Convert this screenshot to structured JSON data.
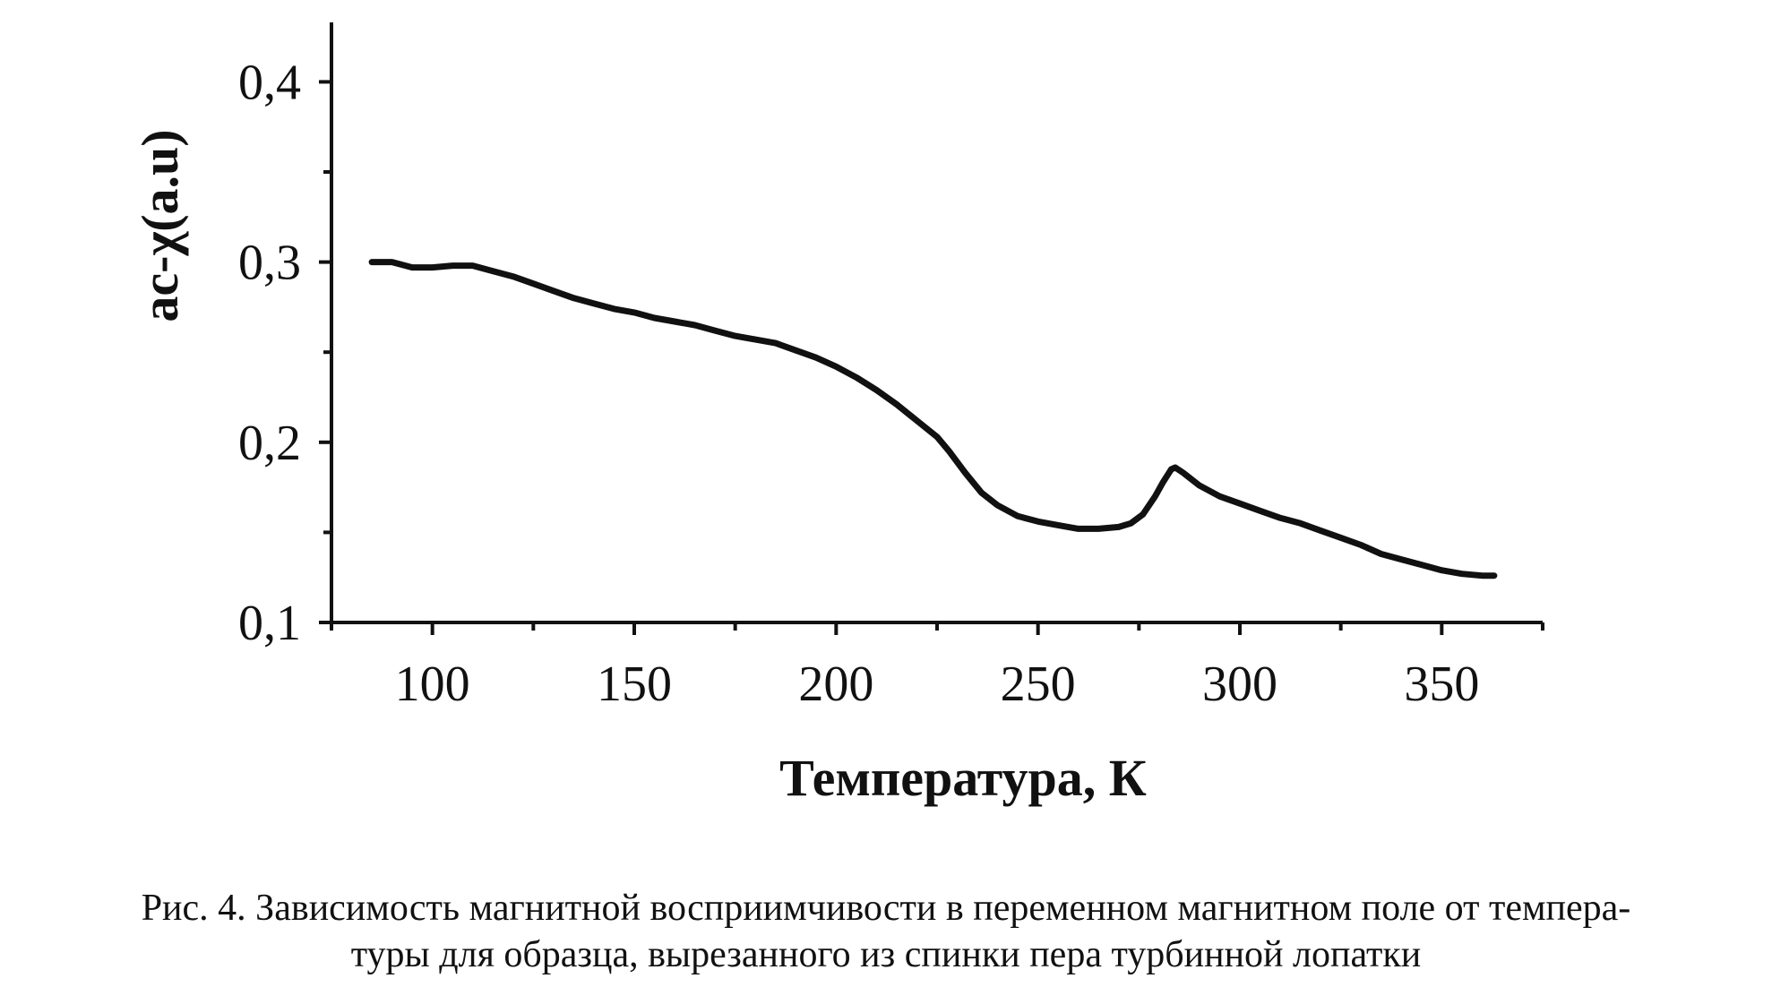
{
  "chart_data": {
    "type": "line",
    "title": "",
    "xlabel": "Температура, К",
    "ylabel": "ac-χ(a.u)",
    "xlim": [
      75,
      375
    ],
    "ylim": [
      0.1,
      0.433
    ],
    "x_ticks": [
      100,
      150,
      200,
      250,
      300,
      350
    ],
    "y_ticks": [
      0.1,
      0.2,
      0.3,
      0.4
    ],
    "x_tick_labels": [
      "100",
      "150",
      "200",
      "250",
      "300",
      "350"
    ],
    "y_tick_labels": [
      "0,1",
      "0,2",
      "0,3",
      "0,4"
    ],
    "grid": false,
    "legend": "none",
    "series": [
      {
        "color": "#111111",
        "x": [
          85,
          90,
          95,
          100,
          105,
          110,
          115,
          120,
          125,
          130,
          135,
          140,
          145,
          150,
          155,
          160,
          165,
          170,
          175,
          180,
          185,
          190,
          195,
          200,
          205,
          210,
          215,
          220,
          225,
          228,
          232,
          236,
          240,
          245,
          250,
          255,
          260,
          265,
          270,
          273,
          276,
          279,
          281,
          283,
          284,
          286,
          290,
          295,
          300,
          305,
          310,
          315,
          320,
          325,
          330,
          335,
          340,
          345,
          350,
          355,
          360,
          363
        ],
        "y": [
          0.3,
          0.3,
          0.297,
          0.297,
          0.298,
          0.298,
          0.295,
          0.292,
          0.288,
          0.284,
          0.28,
          0.277,
          0.274,
          0.272,
          0.269,
          0.267,
          0.265,
          0.262,
          0.259,
          0.257,
          0.255,
          0.251,
          0.247,
          0.242,
          0.236,
          0.229,
          0.221,
          0.212,
          0.203,
          0.195,
          0.183,
          0.172,
          0.165,
          0.159,
          0.156,
          0.154,
          0.152,
          0.152,
          0.153,
          0.155,
          0.16,
          0.17,
          0.178,
          0.185,
          0.186,
          0.183,
          0.176,
          0.17,
          0.166,
          0.162,
          0.158,
          0.155,
          0.151,
          0.147,
          0.143,
          0.138,
          0.135,
          0.132,
          0.129,
          0.127,
          0.126,
          0.126
        ]
      }
    ]
  },
  "caption": {
    "line1": "Рис. 4. Зависимость магнитной восприимчивости в переменном магнитном поле от темпера-",
    "line2": "туры для образца, вырезанного из спинки пера турбинной лопатки"
  }
}
